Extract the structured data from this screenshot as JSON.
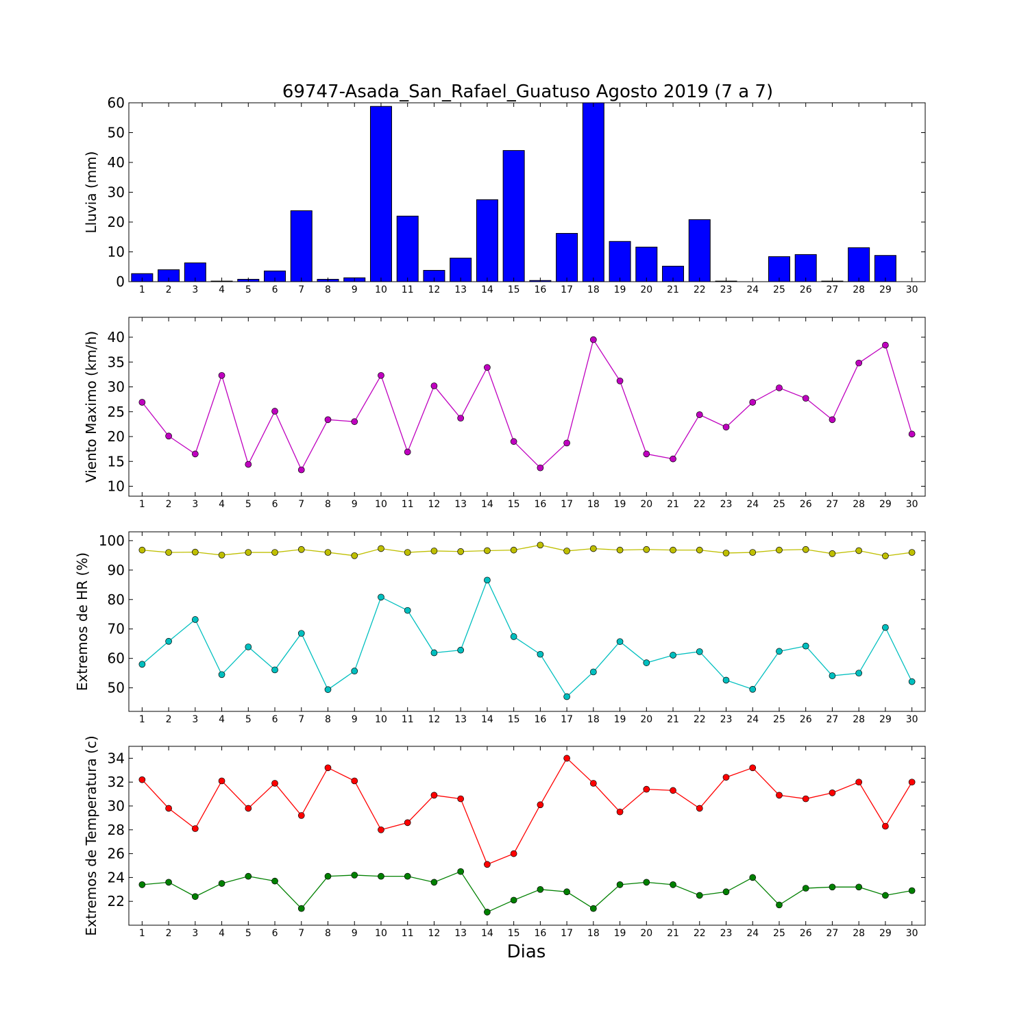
{
  "chart_data": {
    "title": "69747-Asada_San_Rafael_Guatuso Agosto 2019  (7 a 7)",
    "xlabel": "Dias",
    "x": [
      1,
      2,
      3,
      4,
      5,
      6,
      7,
      8,
      9,
      10,
      11,
      12,
      13,
      14,
      15,
      16,
      17,
      18,
      19,
      20,
      21,
      22,
      23,
      24,
      25,
      26,
      27,
      28,
      29,
      30
    ],
    "panels": [
      {
        "id": "lluvia",
        "type": "bar",
        "ylabel": "Lluvia (mm)",
        "ylim": [
          0,
          60
        ],
        "yticks": [
          0,
          10,
          20,
          30,
          40,
          50,
          60
        ],
        "series": [
          {
            "color": "#0000ff",
            "values": [
              2.7,
              4.0,
              6.3,
              0.2,
              0.8,
              3.6,
              23.8,
              0.8,
              1.3,
              58.8,
              22.0,
              3.8,
              7.9,
              27.5,
              44.0,
              0.4,
              16.2,
              60.0,
              13.5,
              11.6,
              5.2,
              20.8,
              0.2,
              0.0,
              8.4,
              9.1,
              0.2,
              11.4,
              8.8,
              0.0
            ]
          }
        ]
      },
      {
        "id": "viento",
        "type": "line",
        "ylabel": "Viento Maximo (km/h)",
        "ylim": [
          8,
          44
        ],
        "yticks": [
          10,
          15,
          20,
          25,
          30,
          35,
          40
        ],
        "series": [
          {
            "color": "#bf00bf",
            "values": [
              26.9,
              20.1,
              16.5,
              32.3,
              14.4,
              25.1,
              13.3,
              23.4,
              23.0,
              32.3,
              16.9,
              30.2,
              23.7,
              33.9,
              19.0,
              13.7,
              18.7,
              39.5,
              31.2,
              16.5,
              15.5,
              24.4,
              21.9,
              26.9,
              29.8,
              27.7,
              23.4,
              34.8,
              38.4,
              20.5
            ]
          }
        ]
      },
      {
        "id": "hr",
        "type": "line",
        "ylabel": "Extremos de HR (%)",
        "ylim": [
          42,
          103
        ],
        "yticks": [
          50,
          60,
          70,
          80,
          90,
          100
        ],
        "series": [
          {
            "color": "#bfbf00",
            "values": [
              96.8,
              96.0,
              96.1,
              95.1,
              96.0,
              96.0,
              97.0,
              96.0,
              94.9,
              97.3,
              96.0,
              96.5,
              96.3,
              96.6,
              96.8,
              98.5,
              96.5,
              97.3,
              96.8,
              97.0,
              96.8,
              96.8,
              95.8,
              96.0,
              96.8,
              97.0,
              95.6,
              96.6,
              94.8,
              96.0
            ]
          },
          {
            "color": "#00bfbf",
            "values": [
              58.0,
              65.8,
              73.2,
              54.5,
              63.9,
              56.1,
              68.5,
              49.4,
              55.7,
              80.8,
              76.3,
              61.9,
              62.8,
              86.6,
              67.4,
              61.4,
              47.0,
              55.4,
              65.7,
              58.5,
              61.1,
              62.3,
              52.6,
              49.5,
              62.4,
              64.2,
              54.1,
              55.0,
              70.5,
              52.1
            ]
          }
        ]
      },
      {
        "id": "temperatura",
        "type": "line",
        "ylabel": "Extremos de Temperatura (c)",
        "ylim": [
          20,
          35
        ],
        "yticks": [
          22,
          24,
          26,
          28,
          30,
          32,
          34
        ],
        "series": [
          {
            "color": "#ff0000",
            "values": [
              32.2,
              29.8,
              28.1,
              32.1,
              29.8,
              31.9,
              29.2,
              33.2,
              32.1,
              28.0,
              28.6,
              30.9,
              30.6,
              25.1,
              26.0,
              30.1,
              34.0,
              31.9,
              29.5,
              31.4,
              31.3,
              29.8,
              32.4,
              33.2,
              30.9,
              30.6,
              31.1,
              32.0,
              28.3,
              32.0
            ]
          },
          {
            "color": "#008000",
            "values": [
              23.4,
              23.6,
              22.4,
              23.5,
              24.1,
              23.7,
              21.4,
              24.1,
              24.2,
              24.1,
              24.1,
              23.6,
              24.5,
              21.1,
              22.1,
              23.0,
              22.8,
              21.4,
              23.4,
              23.6,
              23.4,
              22.5,
              22.8,
              24.0,
              21.7,
              23.1,
              23.2,
              23.2,
              22.5,
              22.9
            ]
          }
        ]
      }
    ]
  }
}
